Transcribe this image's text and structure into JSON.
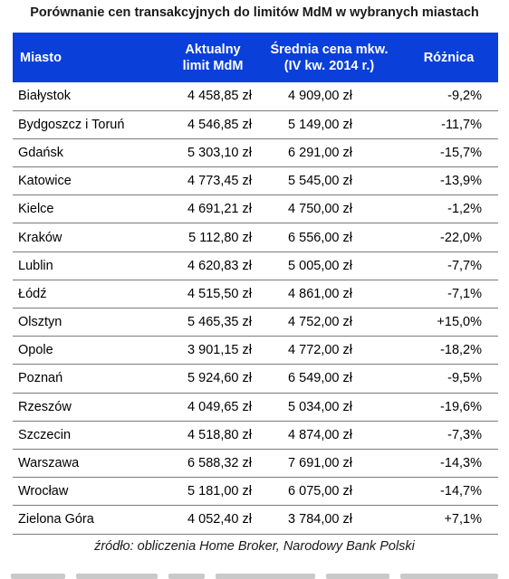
{
  "title": "Porównanie cen transakcyjnych do limitów MdM w wybranych miastach",
  "header": {
    "city": "Miasto",
    "limit_line1": "Aktualny",
    "limit_line2": "limit MdM",
    "price_line1": "Średnia cena mkw.",
    "price_line2": "(IV kw. 2014 r.)",
    "diff": "Różnica"
  },
  "rows": [
    {
      "city": "Białystok",
      "limit": "4 458,85 zł",
      "price": "4 909,00 zł",
      "diff": "-9,2%"
    },
    {
      "city": "Bydgoszcz i Toruń",
      "limit": "4 546,85 zł",
      "price": "5 149,00 zł",
      "diff": "-11,7%"
    },
    {
      "city": "Gdańsk",
      "limit": "5 303,10 zł",
      "price": "6 291,00 zł",
      "diff": "-15,7%"
    },
    {
      "city": "Katowice",
      "limit": "4 773,45 zł",
      "price": "5 545,00 zł",
      "diff": "-13,9%"
    },
    {
      "city": "Kielce",
      "limit": "4 691,21 zł",
      "price": "4 750,00 zł",
      "diff": "-1,2%"
    },
    {
      "city": "Kraków",
      "limit": "5 112,80 zł",
      "price": "6 556,00 zł",
      "diff": "-22,0%"
    },
    {
      "city": "Lublin",
      "limit": "4 620,83 zł",
      "price": "5 005,00 zł",
      "diff": "-7,7%"
    },
    {
      "city": "Łódź",
      "limit": "4 515,50 zł",
      "price": "4 861,00 zł",
      "diff": "-7,1%"
    },
    {
      "city": "Olsztyn",
      "limit": "5 465,35 zł",
      "price": "4 752,00 zł",
      "diff": "+15,0%"
    },
    {
      "city": "Opole",
      "limit": "3 901,15 zł",
      "price": "4 772,00 zł",
      "diff": "-18,2%"
    },
    {
      "city": "Poznań",
      "limit": "5 924,60 zł",
      "price": "6 549,00 zł",
      "diff": "-9,5%"
    },
    {
      "city": "Rzeszów",
      "limit": "4 049,65 zł",
      "price": "5 034,00 zł",
      "diff": "-19,6%"
    },
    {
      "city": "Szczecin",
      "limit": "4 518,80 zł",
      "price": "4 874,00 zł",
      "diff": "-7,3%"
    },
    {
      "city": "Warszawa",
      "limit": "6 588,32 zł",
      "price": "7 691,00 zł",
      "diff": "-14,3%"
    },
    {
      "city": "Wrocław",
      "limit": "5 181,00 zł",
      "price": "6 075,00 zł",
      "diff": "-14,7%"
    },
    {
      "city": "Zielona Góra",
      "limit": "4 052,40 zł",
      "price": "3 784,00 zł",
      "diff": "+7,1%"
    }
  ],
  "source": "źródło: obliczenia Home Broker, Narodowy Bank Polski",
  "colors": {
    "header_background": "#0b3fd9",
    "header_text": "#ffffff",
    "row_divider": "#7a7a7a"
  }
}
